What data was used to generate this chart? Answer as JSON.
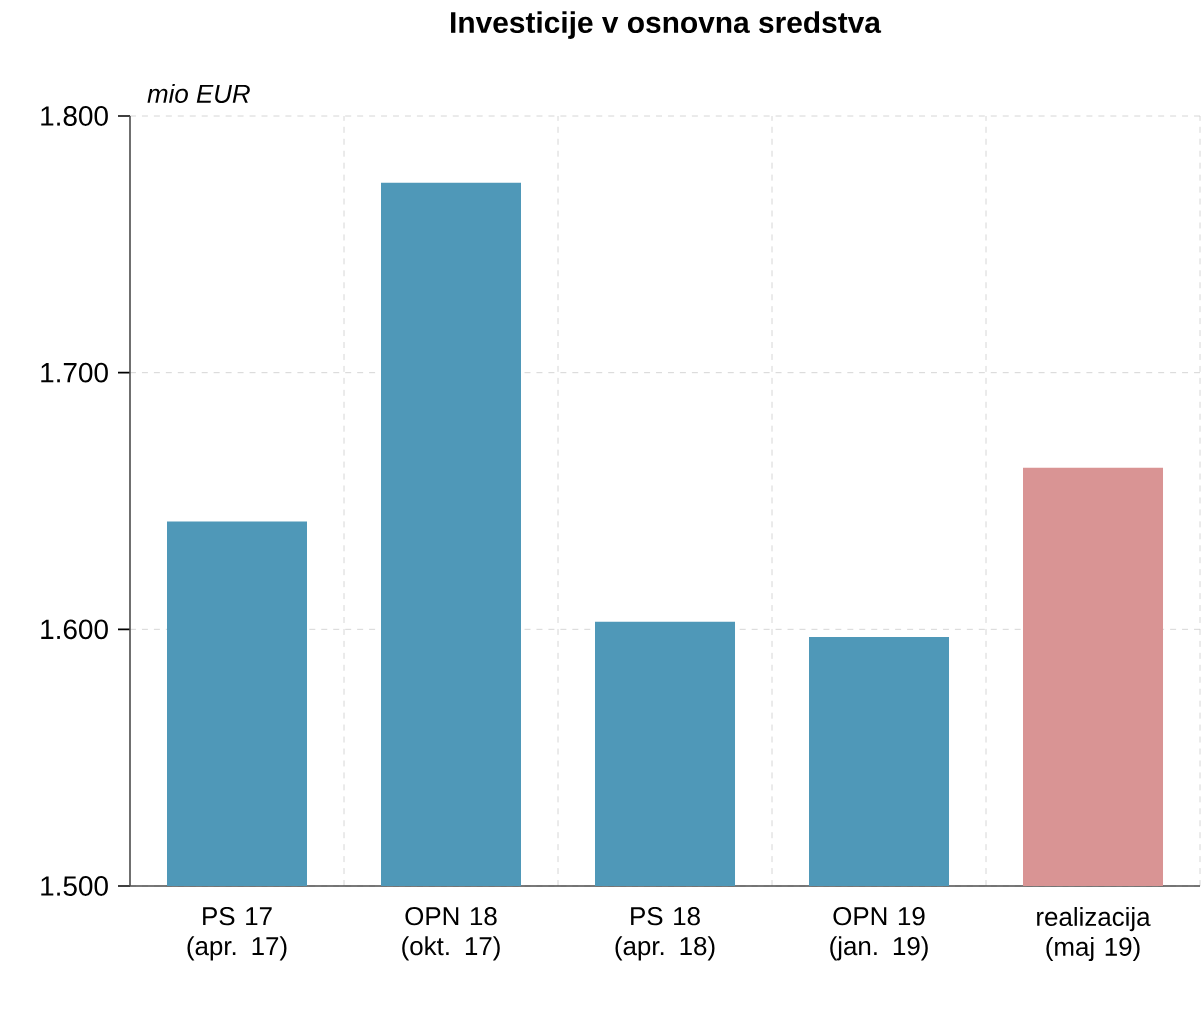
{
  "chart_data": {
    "type": "bar",
    "title": "Investicije v osnovna sredstva",
    "ylabel": "mio EUR",
    "categories": [
      "PS 17 (apr. 17)",
      "OPN 18 (okt. 17)",
      "PS 18 (apr. 18)",
      "OPN 19 (jan. 19)",
      "realizacija (maj 19)"
    ],
    "values": [
      1642,
      1774,
      1603,
      1597,
      1663
    ],
    "colors": [
      "#4f98b8",
      "#4f98b8",
      "#4f98b8",
      "#4f98b8",
      "#d99494"
    ],
    "ylim": [
      1500,
      1800
    ],
    "yticks": [
      {
        "value": 1500,
        "label": "1.500"
      },
      {
        "value": 1600,
        "label": "1.600"
      },
      {
        "value": 1700,
        "label": "1.700"
      },
      {
        "value": 1800,
        "label": "1.800"
      }
    ],
    "grid": true
  }
}
